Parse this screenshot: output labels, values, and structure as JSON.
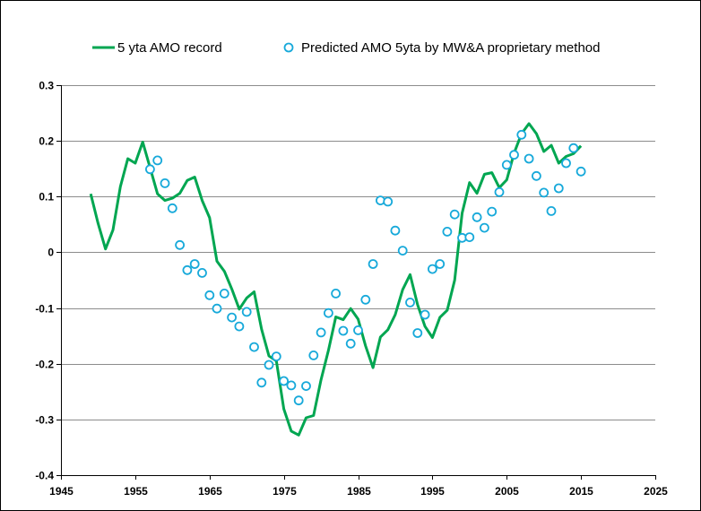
{
  "chart_data": {
    "type": "line",
    "title": "",
    "xlabel": "",
    "ylabel": "",
    "xlim": [
      1945,
      2025
    ],
    "ylim": [
      -0.4,
      0.3
    ],
    "x_ticks": [
      1945,
      1955,
      1965,
      1975,
      1985,
      1995,
      2005,
      2015,
      2025
    ],
    "y_ticks": [
      0.3,
      0.2,
      0.1,
      0,
      -0.1,
      -0.2,
      -0.3,
      -0.4
    ],
    "y_tick_labels": [
      "0.3",
      "0.2",
      "0.1",
      "0",
      "-0.1",
      "-0.2",
      "-0.3",
      "-0.4"
    ],
    "grid": "horizontal",
    "legend_position": "top",
    "series": [
      {
        "name": "5 yta AMO record",
        "kind": "line",
        "color": "#00A651",
        "x": [
          1949,
          1950,
          1951,
          1952,
          1953,
          1954,
          1955,
          1956,
          1957,
          1958,
          1959,
          1960,
          1961,
          1962,
          1963,
          1964,
          1965,
          1966,
          1967,
          1968,
          1969,
          1970,
          1971,
          1972,
          1973,
          1974,
          1975,
          1976,
          1977,
          1978,
          1979,
          1980,
          1981,
          1982,
          1983,
          1984,
          1985,
          1986,
          1987,
          1988,
          1989,
          1990,
          1991,
          1992,
          1993,
          1994,
          1995,
          1996,
          1997,
          1998,
          1999,
          2000,
          2001,
          2002,
          2003,
          2004,
          2005,
          2006,
          2007,
          2008,
          2009,
          2010,
          2011,
          2012,
          2013,
          2014,
          2015
        ],
        "y": [
          0.105,
          0.052,
          0.006,
          0.04,
          0.118,
          0.168,
          0.16,
          0.198,
          0.152,
          0.105,
          0.093,
          0.097,
          0.106,
          0.129,
          0.135,
          0.093,
          0.062,
          -0.016,
          -0.034,
          -0.066,
          -0.102,
          -0.082,
          -0.071,
          -0.138,
          -0.186,
          -0.195,
          -0.281,
          -0.321,
          -0.328,
          -0.297,
          -0.293,
          -0.229,
          -0.176,
          -0.116,
          -0.121,
          -0.101,
          -0.12,
          -0.168,
          -0.207,
          -0.152,
          -0.139,
          -0.112,
          -0.067,
          -0.04,
          -0.094,
          -0.133,
          -0.153,
          -0.117,
          -0.104,
          -0.05,
          0.07,
          0.125,
          0.106,
          0.14,
          0.143,
          0.116,
          0.13,
          0.178,
          0.213,
          0.231,
          0.213,
          0.181,
          0.192,
          0.16,
          0.172,
          0.177,
          0.191
        ]
      },
      {
        "name": "Predicted AMO 5yta by MW&A proprietary method",
        "kind": "markers",
        "color": "#17A9DA",
        "x": [
          1957,
          1958,
          1959,
          1960,
          1961,
          1962,
          1963,
          1964,
          1965,
          1966,
          1967,
          1968,
          1969,
          1970,
          1971,
          1972,
          1973,
          1974,
          1975,
          1976,
          1977,
          1978,
          1979,
          1980,
          1981,
          1982,
          1983,
          1984,
          1985,
          1986,
          1987,
          1988,
          1989,
          1990,
          1991,
          1992,
          1993,
          1994,
          1995,
          1996,
          1997,
          1998,
          1999,
          2000,
          2001,
          2002,
          2003,
          2004,
          2005,
          2006,
          2007,
          2008,
          2009,
          2010,
          2011,
          2012,
          2013,
          2014,
          2015
        ],
        "y": [
          0.149,
          0.165,
          0.124,
          0.079,
          0.013,
          -0.032,
          -0.021,
          -0.037,
          -0.077,
          -0.101,
          -0.074,
          -0.117,
          -0.133,
          -0.107,
          -0.17,
          -0.234,
          -0.202,
          -0.187,
          -0.231,
          -0.239,
          -0.266,
          -0.24,
          -0.185,
          -0.144,
          -0.109,
          -0.074,
          -0.141,
          -0.164,
          -0.14,
          -0.085,
          -0.021,
          0.093,
          0.091,
          0.039,
          0.003,
          -0.09,
          -0.145,
          -0.112,
          -0.03,
          -0.021,
          0.037,
          0.068,
          0.026,
          0.027,
          0.063,
          0.044,
          0.073,
          0.108,
          0.157,
          0.175,
          0.211,
          0.168,
          0.137,
          0.107,
          0.074,
          0.115,
          0.16,
          0.187,
          0.145
        ]
      }
    ]
  }
}
